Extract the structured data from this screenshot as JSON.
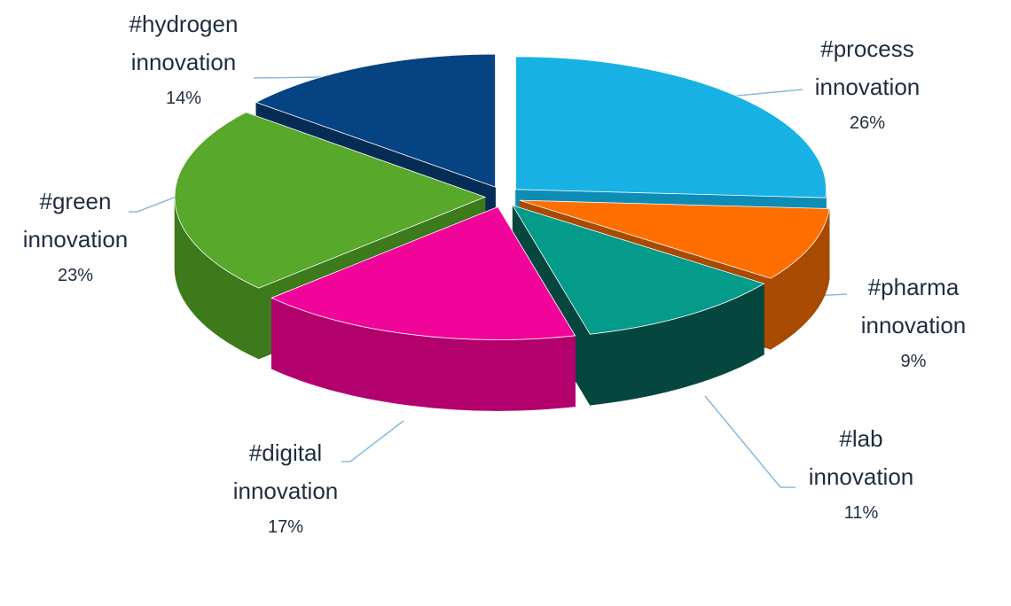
{
  "chart_data": {
    "type": "pie",
    "style": "3d-exploded",
    "legend": "none",
    "slices": [
      {
        "name": "#process innovation",
        "line1": "#process",
        "line2": "innovation",
        "pct_label": "26%",
        "value": 26,
        "color": "#17b2e3",
        "side": "#0d8db5"
      },
      {
        "name": "#pharma innovation",
        "line1": "#pharma",
        "line2": "innovation",
        "pct_label": "9%",
        "value": 9,
        "color": "#ff6f00",
        "side": "#a84a00"
      },
      {
        "name": "#lab innovation",
        "line1": "#lab",
        "line2": "innovation",
        "pct_label": "11%",
        "value": 11,
        "color": "#049b8a",
        "side": "#05473f"
      },
      {
        "name": "#digital innovation",
        "line1": "#digital",
        "line2": "innovation",
        "pct_label": "17%",
        "value": 17,
        "color": "#f0049a",
        "side": "#b2006d"
      },
      {
        "name": "#green innovation",
        "line1": "#green",
        "line2": "innovation",
        "pct_label": "23%",
        "value": 23,
        "color": "#58a82b",
        "side": "#3c7a1b"
      },
      {
        "name": "#hydrogen innovation",
        "line1": "#hydrogen",
        "line2": "innovation",
        "pct_label": "14%",
        "value": 14,
        "color": "#064383",
        "side": "#042c55"
      }
    ],
    "leader_line_color": "#8dbbd9"
  }
}
